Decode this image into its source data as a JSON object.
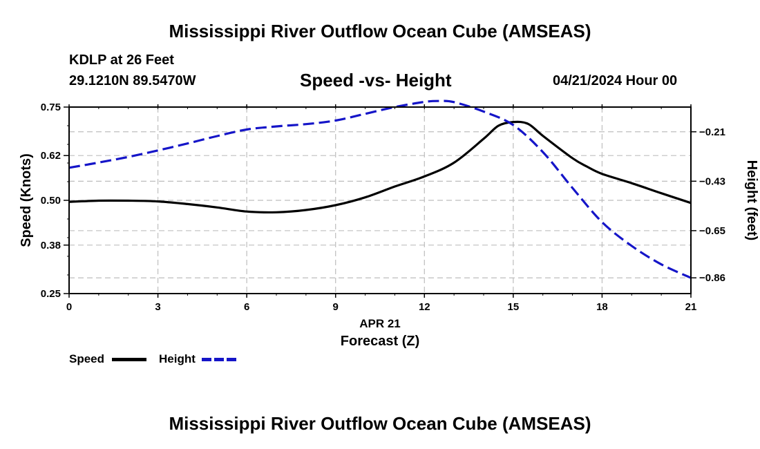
{
  "header": {
    "title": "Mississippi River Outflow Ocean Cube (AMSEAS)",
    "station": "KDLP at 26 Feet",
    "coords": "29.1210N  89.5470W",
    "subtitle": "Speed -vs- Height",
    "datetime": "04/21/2024 Hour 00"
  },
  "footer": {
    "title": "Mississippi River Outflow Ocean Cube (AMSEAS)"
  },
  "legend": {
    "speed_label": "Speed",
    "height_label": "Height"
  },
  "chart_data": {
    "type": "line",
    "title": "Speed -vs- Height",
    "xlabel": "Forecast (Z)",
    "x_date_label": "APR 21",
    "ylabel_left": "Speed (Knots)",
    "ylabel_right": "Height (feet)",
    "xlim": [
      0,
      21
    ],
    "ylim_left": [
      0.25,
      0.75
    ],
    "ylim_right": [
      -0.93,
      -0.1
    ],
    "x_ticks": [
      0,
      3,
      6,
      9,
      12,
      15,
      18,
      21
    ],
    "y_left_ticks": [
      0.25,
      0.38,
      0.5,
      0.62,
      0.75
    ],
    "y_left_tick_labels": [
      "0.25",
      "0.38",
      "0.50",
      "0.62",
      "0.75"
    ],
    "y_right_ticks": [
      -0.86,
      -0.65,
      -0.43,
      -0.21
    ],
    "y_right_tick_labels": [
      "−0.86",
      "−0.65",
      "−0.43",
      "−0.21"
    ],
    "grid": true,
    "series": [
      {
        "name": "Speed",
        "axis": "left",
        "color": "#000000",
        "style": "solid",
        "x": [
          0,
          1,
          2,
          3,
          4,
          5,
          6,
          7,
          8,
          9,
          10,
          11,
          12,
          13,
          14,
          14.5,
          15,
          15.5,
          16,
          17,
          17.5,
          18,
          19,
          20,
          21
        ],
        "values": [
          0.496,
          0.499,
          0.499,
          0.497,
          0.49,
          0.481,
          0.47,
          0.468,
          0.474,
          0.487,
          0.508,
          0.537,
          0.564,
          0.601,
          0.665,
          0.7,
          0.71,
          0.705,
          0.673,
          0.613,
          0.59,
          0.571,
          0.546,
          0.519,
          0.493
        ]
      },
      {
        "name": "Height",
        "axis": "right",
        "color": "#1515c8",
        "style": "dashed",
        "x": [
          0,
          1,
          2,
          3,
          4,
          5,
          6,
          7,
          8,
          9,
          10,
          11,
          12,
          12.5,
          13,
          14,
          15,
          16,
          17,
          18,
          19,
          20,
          21
        ],
        "values": [
          -0.37,
          -0.347,
          -0.322,
          -0.293,
          -0.262,
          -0.229,
          -0.2,
          -0.186,
          -0.176,
          -0.16,
          -0.13,
          -0.1,
          -0.077,
          -0.073,
          -0.078,
          -0.12,
          -0.18,
          -0.3,
          -0.46,
          -0.612,
          -0.718,
          -0.8,
          -0.86
        ]
      }
    ]
  }
}
